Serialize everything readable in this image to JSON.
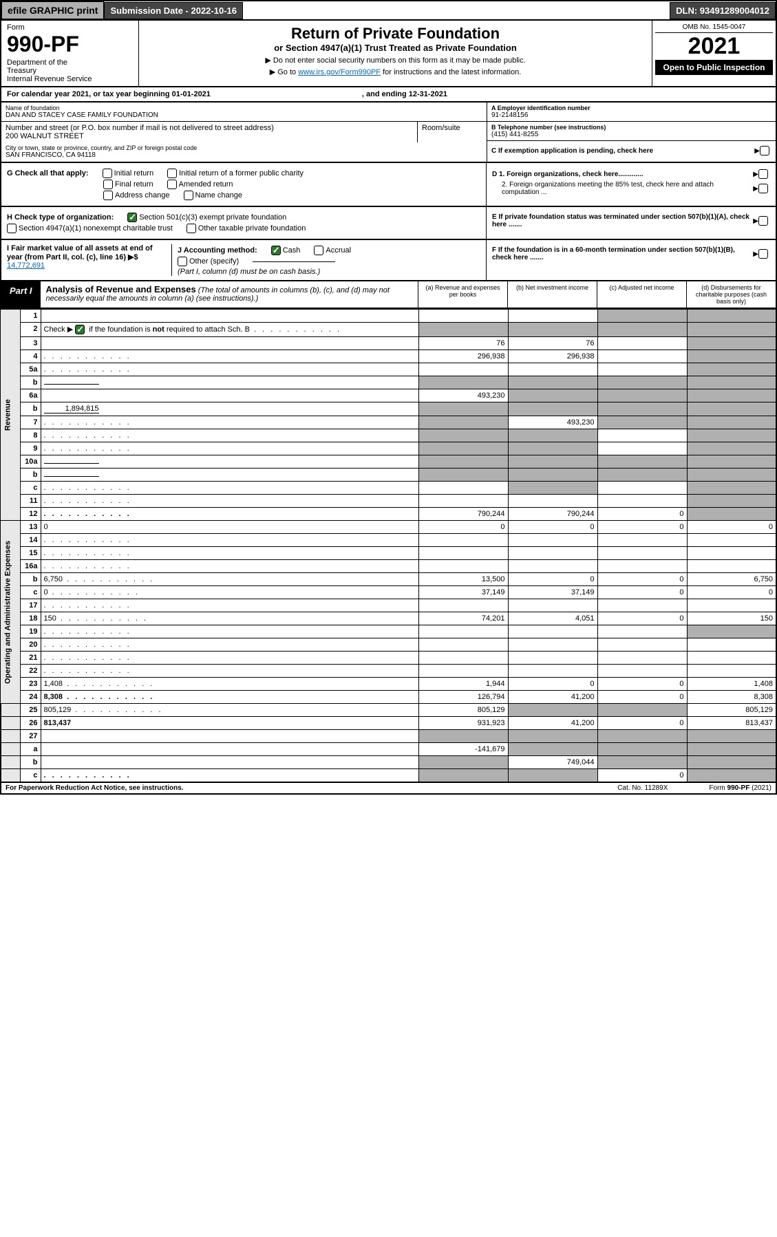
{
  "topbar": {
    "efile": "efile GRAPHIC print",
    "subdate_label": "Submission Date - 2022-10-16",
    "dln": "DLN: 93491289004012"
  },
  "header": {
    "form_label": "Form",
    "form_num": "990-PF",
    "dept": "Department of the Treasury\nInternal Revenue Service",
    "title": "Return of Private Foundation",
    "subtitle": "or Section 4947(a)(1) Trust Treated as Private Foundation",
    "note1": "▶ Do not enter social security numbers on this form as it may be made public.",
    "note2": "▶ Go to ",
    "note2_link": "www.irs.gov/Form990PF",
    "note2_after": " for instructions and the latest information.",
    "omb": "OMB No. 1545-0047",
    "year": "2021",
    "open": "Open to Public Inspection"
  },
  "calyear": {
    "text": "For calendar year 2021, or tax year beginning 01-01-2021",
    "ending": ", and ending 12-31-2021"
  },
  "info": {
    "name_lbl": "Name of foundation",
    "name": "DAN AND STACEY CASE FAMILY FOUNDATION",
    "addr_lbl": "Number and street (or P.O. box number if mail is not delivered to street address)",
    "addr": "200 WALNUT STREET",
    "room_lbl": "Room/suite",
    "room": "",
    "city_lbl": "City or town, state or province, country, and ZIP or foreign postal code",
    "city": "SAN FRANCISCO, CA  94118",
    "ein_lbl": "A Employer identification number",
    "ein": "91-2148156",
    "tel_lbl": "B Telephone number (see instructions)",
    "tel": "(415) 441-8255",
    "c_lbl": "C If exemption application is pending, check here",
    "d1": "D 1. Foreign organizations, check here.............",
    "d2": "2. Foreign organizations meeting the 85% test, check here and attach computation ...",
    "e": "E If private foundation status was terminated under section 507(b)(1)(A), check here .......",
    "f": "F If the foundation is in a 60-month termination under section 507(b)(1)(B), check here .......",
    "g_lbl": "G Check all that apply:",
    "g_initial": "Initial return",
    "g_initial_former": "Initial return of a former public charity",
    "g_final": "Final return",
    "g_amended": "Amended return",
    "g_addr": "Address change",
    "g_name": "Name change",
    "h_lbl": "H Check type of organization:",
    "h_501c3": "Section 501(c)(3) exempt private foundation",
    "h_4947": "Section 4947(a)(1) nonexempt charitable trust",
    "h_other": "Other taxable private foundation",
    "i_lbl": "I Fair market value of all assets at end of year (from Part II, col. (c), line 16) ▶$ ",
    "i_val": "14,772,691",
    "j_lbl": "J Accounting method:",
    "j_cash": "Cash",
    "j_accrual": "Accrual",
    "j_other": "Other (specify)",
    "j_note": "(Part I, column (d) must be on cash basis.)"
  },
  "part1": {
    "badge": "Part I",
    "title": "Analysis of Revenue and Expenses",
    "title_note": " (The total of amounts in columns (b), (c), and (d) may not necessarily equal the amounts in column (a) (see instructions).)",
    "col_a": "(a) Revenue and expenses per books",
    "col_b": "(b) Net investment income",
    "col_c": "(c) Adjusted net income",
    "col_d": "(d) Disbursements for charitable purposes (cash basis only)"
  },
  "vert_labels": {
    "revenue": "Revenue",
    "expenses": "Operating and Administrative Expenses"
  },
  "rows": [
    {
      "n": "1",
      "d": "",
      "a": "",
      "b": "",
      "c": "",
      "shade_c": true,
      "shade_d": true
    },
    {
      "n": "2",
      "d": "",
      "a": "",
      "b": "",
      "c": "",
      "shade_a": true,
      "shade_b": true,
      "shade_c": true,
      "shade_d": true,
      "checked": true,
      "dots": true
    },
    {
      "n": "3",
      "d": "",
      "a": "76",
      "b": "76",
      "c": "",
      "shade_d": true
    },
    {
      "n": "4",
      "d": "",
      "a": "296,938",
      "b": "296,938",
      "c": "",
      "shade_d": true,
      "dots": true
    },
    {
      "n": "5a",
      "d": "",
      "a": "",
      "b": "",
      "c": "",
      "shade_d": true,
      "dots": true
    },
    {
      "n": "b",
      "d": "",
      "a": "",
      "b": "",
      "c": "",
      "shade_a": true,
      "shade_b": true,
      "shade_c": true,
      "shade_d": true,
      "inline": true
    },
    {
      "n": "6a",
      "d": "",
      "a": "493,230",
      "b": "",
      "c": "",
      "shade_b": true,
      "shade_c": true,
      "shade_d": true
    },
    {
      "n": "b",
      "d": "",
      "a": "",
      "b": "",
      "c": "",
      "shade_a": true,
      "shade_b": true,
      "shade_c": true,
      "shade_d": true,
      "inline": true,
      "inline_val": "1,894,815"
    },
    {
      "n": "7",
      "d": "",
      "a": "",
      "b": "493,230",
      "c": "",
      "shade_a": true,
      "shade_c": true,
      "shade_d": true,
      "dots": true
    },
    {
      "n": "8",
      "d": "",
      "a": "",
      "b": "",
      "c": "",
      "shade_a": true,
      "shade_b": true,
      "shade_d": true,
      "dots": true
    },
    {
      "n": "9",
      "d": "",
      "a": "",
      "b": "",
      "c": "",
      "shade_a": true,
      "shade_b": true,
      "shade_d": true,
      "dots": true
    },
    {
      "n": "10a",
      "d": "",
      "a": "",
      "b": "",
      "c": "",
      "shade_a": true,
      "shade_b": true,
      "shade_c": true,
      "shade_d": true,
      "inline": true
    },
    {
      "n": "b",
      "d": "",
      "a": "",
      "b": "",
      "c": "",
      "shade_a": true,
      "shade_b": true,
      "shade_c": true,
      "shade_d": true,
      "inline": true,
      "dots": true
    },
    {
      "n": "c",
      "d": "",
      "a": "",
      "b": "",
      "c": "",
      "shade_b": true,
      "shade_d": true,
      "dots": true
    },
    {
      "n": "11",
      "d": "",
      "a": "",
      "b": "",
      "c": "",
      "shade_d": true,
      "dots": true
    },
    {
      "n": "12",
      "d": "",
      "a": "790,244",
      "b": "790,244",
      "c": "0",
      "bold": true,
      "shade_d": true,
      "dots": true
    },
    {
      "n": "13",
      "d": "0",
      "a": "0",
      "b": "0",
      "c": "0"
    },
    {
      "n": "14",
      "d": "",
      "a": "",
      "b": "",
      "c": "",
      "dots": true
    },
    {
      "n": "15",
      "d": "",
      "a": "",
      "b": "",
      "c": "",
      "dots": true
    },
    {
      "n": "16a",
      "d": "",
      "a": "",
      "b": "",
      "c": "",
      "dots": true
    },
    {
      "n": "b",
      "d": "6,750",
      "a": "13,500",
      "b": "0",
      "c": "0",
      "dots": true
    },
    {
      "n": "c",
      "d": "0",
      "a": "37,149",
      "b": "37,149",
      "c": "0",
      "dots": true
    },
    {
      "n": "17",
      "d": "",
      "a": "",
      "b": "",
      "c": "",
      "dots": true
    },
    {
      "n": "18",
      "d": "150",
      "a": "74,201",
      "b": "4,051",
      "c": "0",
      "dots": true
    },
    {
      "n": "19",
      "d": "",
      "a": "",
      "b": "",
      "c": "",
      "shade_d": true,
      "dots": true
    },
    {
      "n": "20",
      "d": "",
      "a": "",
      "b": "",
      "c": "",
      "dots": true
    },
    {
      "n": "21",
      "d": "",
      "a": "",
      "b": "",
      "c": "",
      "dots": true
    },
    {
      "n": "22",
      "d": "",
      "a": "",
      "b": "",
      "c": "",
      "dots": true
    },
    {
      "n": "23",
      "d": "1,408",
      "a": "1,944",
      "b": "0",
      "c": "0",
      "dots": true
    },
    {
      "n": "24",
      "d": "8,308",
      "a": "126,794",
      "b": "41,200",
      "c": "0",
      "bold": true,
      "dots": true
    },
    {
      "n": "25",
      "d": "805,129",
      "a": "805,129",
      "b": "",
      "c": "",
      "shade_b": true,
      "shade_c": true,
      "dots": true
    },
    {
      "n": "26",
      "d": "813,437",
      "a": "931,923",
      "b": "41,200",
      "c": "0",
      "bold": true
    },
    {
      "n": "27",
      "d": "",
      "a": "",
      "b": "",
      "c": "",
      "shade_a": true,
      "shade_b": true,
      "shade_c": true,
      "shade_d": true
    },
    {
      "n": "a",
      "d": "",
      "a": "-141,679",
      "b": "",
      "c": "",
      "bold": true,
      "shade_b": true,
      "shade_c": true,
      "shade_d": true
    },
    {
      "n": "b",
      "d": "",
      "a": "",
      "b": "749,044",
      "c": "",
      "bold": true,
      "shade_a": true,
      "shade_c": true,
      "shade_d": true
    },
    {
      "n": "c",
      "d": "",
      "a": "",
      "b": "",
      "c": "0",
      "bold": true,
      "shade_a": true,
      "shade_b": true,
      "shade_d": true,
      "dots": true
    }
  ],
  "footer": {
    "left": "For Paperwork Reduction Act Notice, see instructions.",
    "mid": "Cat. No. 11289X",
    "right": "Form 990-PF (2021)"
  }
}
